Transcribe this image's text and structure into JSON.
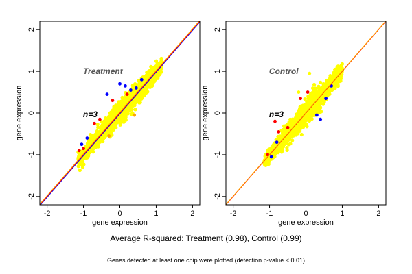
{
  "chart_data": [
    {
      "type": "scatter",
      "panel_label": "Treatment",
      "annotation": "n=3",
      "xlabel": "gene expression",
      "ylabel": "gene expression",
      "xlim": [
        -2.2,
        2.2
      ],
      "ylim": [
        -2.2,
        2.2
      ],
      "x_ticks": [
        -2,
        -1,
        0,
        1,
        2
      ],
      "y_ticks": [
        -2,
        -1,
        0,
        1,
        2
      ],
      "cloud": {
        "x_range": [
          -1.15,
          1.15
        ],
        "spread": 0.14
      },
      "reference_lines": [
        {
          "color": "#0000ff",
          "slope": 1.0,
          "intercept": -0.02
        },
        {
          "color": "#ff0000",
          "slope": 1.0,
          "intercept": 0.0
        },
        {
          "color": "#ffa500",
          "slope": 1.0,
          "intercept": 0.02
        }
      ],
      "outliers": {
        "blue": [
          [
            -0.35,
            0.45
          ],
          [
            0.0,
            0.7
          ],
          [
            0.15,
            0.65
          ],
          [
            0.3,
            0.55
          ],
          [
            0.45,
            0.6
          ],
          [
            0.6,
            0.8
          ],
          [
            -1.05,
            -0.75
          ],
          [
            -0.9,
            -0.6
          ]
        ],
        "red": [
          [
            -0.7,
            -0.25
          ],
          [
            -0.55,
            -0.15
          ],
          [
            0.2,
            0.45
          ],
          [
            -1.0,
            -0.85
          ],
          [
            -1.12,
            -0.9
          ],
          [
            -0.2,
            0.3
          ]
        ],
        "orange": [
          [
            0.4,
            -0.05
          ],
          [
            -0.3,
            -0.55
          ]
        ]
      }
    },
    {
      "type": "scatter",
      "panel_label": "Control",
      "annotation": "n=3",
      "xlabel": "gene expression",
      "ylabel": "gene expression",
      "xlim": [
        -2.2,
        2.2
      ],
      "ylim": [
        -2.2,
        2.2
      ],
      "x_ticks": [
        -2,
        -1,
        0,
        1,
        2
      ],
      "y_ticks": [
        -2,
        -1,
        0,
        1,
        2
      ],
      "cloud": {
        "x_range": [
          -1.15,
          1.0
        ],
        "spread": 0.14
      },
      "reference_lines": [
        {
          "color": "#ff0000",
          "slope": 1.0,
          "intercept": 0.0
        },
        {
          "color": "#ffa500",
          "slope": 1.0,
          "intercept": 0.01
        }
      ],
      "outliers": {
        "blue": [
          [
            0.3,
            -0.05
          ],
          [
            0.4,
            -0.15
          ],
          [
            -0.8,
            -0.7
          ],
          [
            -0.95,
            -1.05
          ],
          [
            0.55,
            0.35
          ],
          [
            0.7,
            0.65
          ]
        ],
        "red": [
          [
            -1.05,
            -1.0
          ],
          [
            -0.75,
            -0.45
          ],
          [
            -0.5,
            -0.35
          ],
          [
            -0.15,
            0.35
          ],
          [
            0.05,
            0.5
          ],
          [
            -0.85,
            -0.2
          ]
        ],
        "yellow": [
          [
            -0.2,
            0.5
          ],
          [
            0.1,
            0.95
          ]
        ]
      }
    }
  ],
  "caption_main": "Average R-squared: Treatment (0.98), Control (0.99)",
  "caption_note": "Genes detected at least one chip were plotted (detection p-value < 0.01)",
  "colors": {
    "cloud": "#ffff00",
    "blue": "#0000ff",
    "red": "#ff0000",
    "orange": "#ffa500"
  }
}
